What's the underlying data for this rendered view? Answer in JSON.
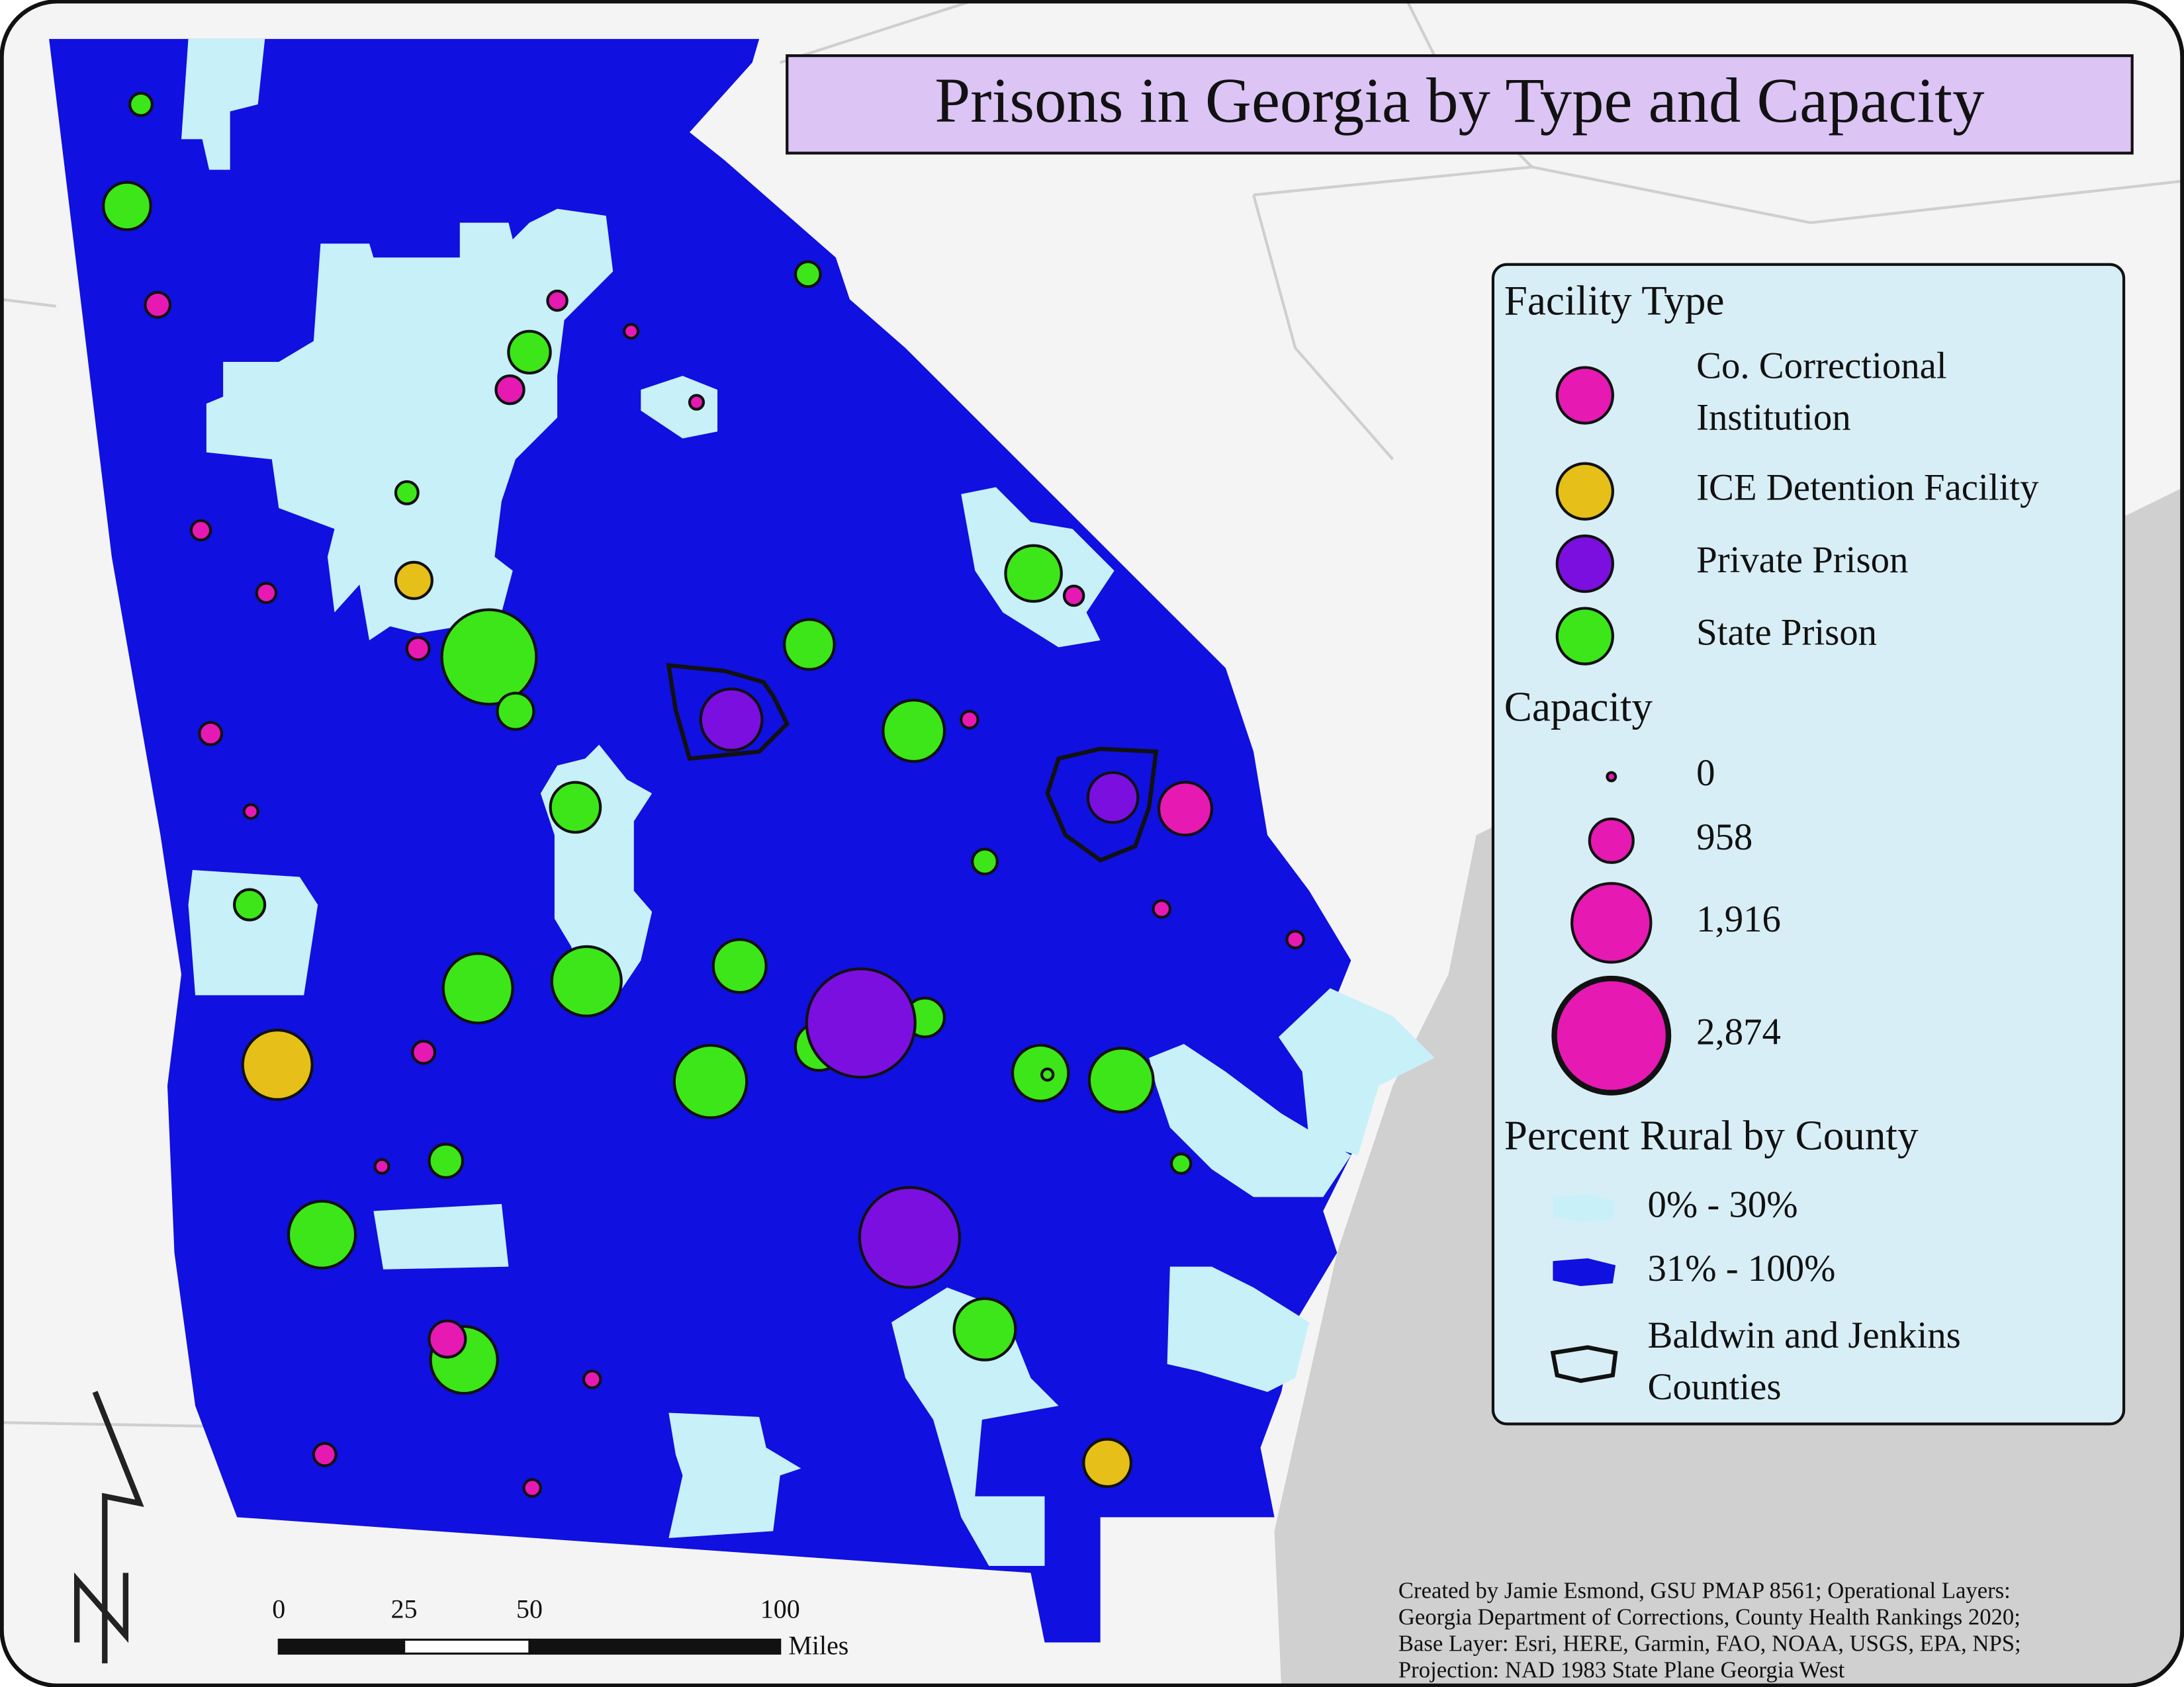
{
  "title": "Prisons in Georgia by Type and Capacity",
  "legend": {
    "facility_heading": "Facility Type",
    "facility_types": [
      {
        "label": [
          "Co. Correctional",
          "Institution"
        ],
        "color": "#e619b3",
        "capacities": [
          450,
          300,
          150,
          530,
          150,
          300,
          300,
          380,
          380,
          150,
          230,
          300,
          1210,
          230,
          230,
          380,
          150,
          760,
          230,
          380,
          230
        ]
      },
      {
        "label": [
          "ICE Detention Facility"
        ],
        "color": "#e6bf19",
        "capacities": [
          760,
          1660,
          1060
        ]
      },
      {
        "label": [
          "Private Prison"
        ],
        "color": "#7a0fe0",
        "capacities": [
          1440,
          1130,
          2720,
          2490
        ]
      },
      {
        "label": [
          "State Prison"
        ],
        "color": "#3de619",
        "capacities": [
          380,
          1060,
          450,
          910,
          380,
          1290,
          2340,
          760,
          1130,
          1440,
          1130,
          450,
          600,
          1660,
          1660,
          1210,
          830,
          1060,
          1740,
          1290,
          80,
          1510,
          300,
          680,
          1590,
          1440,
          1590
        ]
      }
    ],
    "capacity_heading": "Capacity",
    "capacity_sizes": [
      0,
      958,
      {
        "value": 1916,
        "label": "1,916"
      },
      {
        "value": 2874,
        "label": "2,874"
      }
    ],
    "rural_heading": "Percent Rural by County",
    "rural_classes": [
      {
        "label": "0% - 30%",
        "color": "#c8f0f8"
      },
      {
        "label": "31% - 100%",
        "color": "#1010e0"
      }
    ],
    "outline_label": [
      "Baldwin and Jenkins",
      "Counties"
    ]
  },
  "scale_bar": {
    "ticks": [
      0,
      25,
      50,
      100
    ],
    "unit": "Miles"
  },
  "credits": [
    "Created by Jamie Esmond, GSU PMAP 8561; Operational Layers:",
    "Georgia Department of Corrections, County Health Rankings 2020;",
    "Base Layer: Esri, HERE, Garmin, FAO, NOAA, USGS, EPA, NPS;",
    "Projection: NAD 1983 State Plane Georgia West"
  ]
}
